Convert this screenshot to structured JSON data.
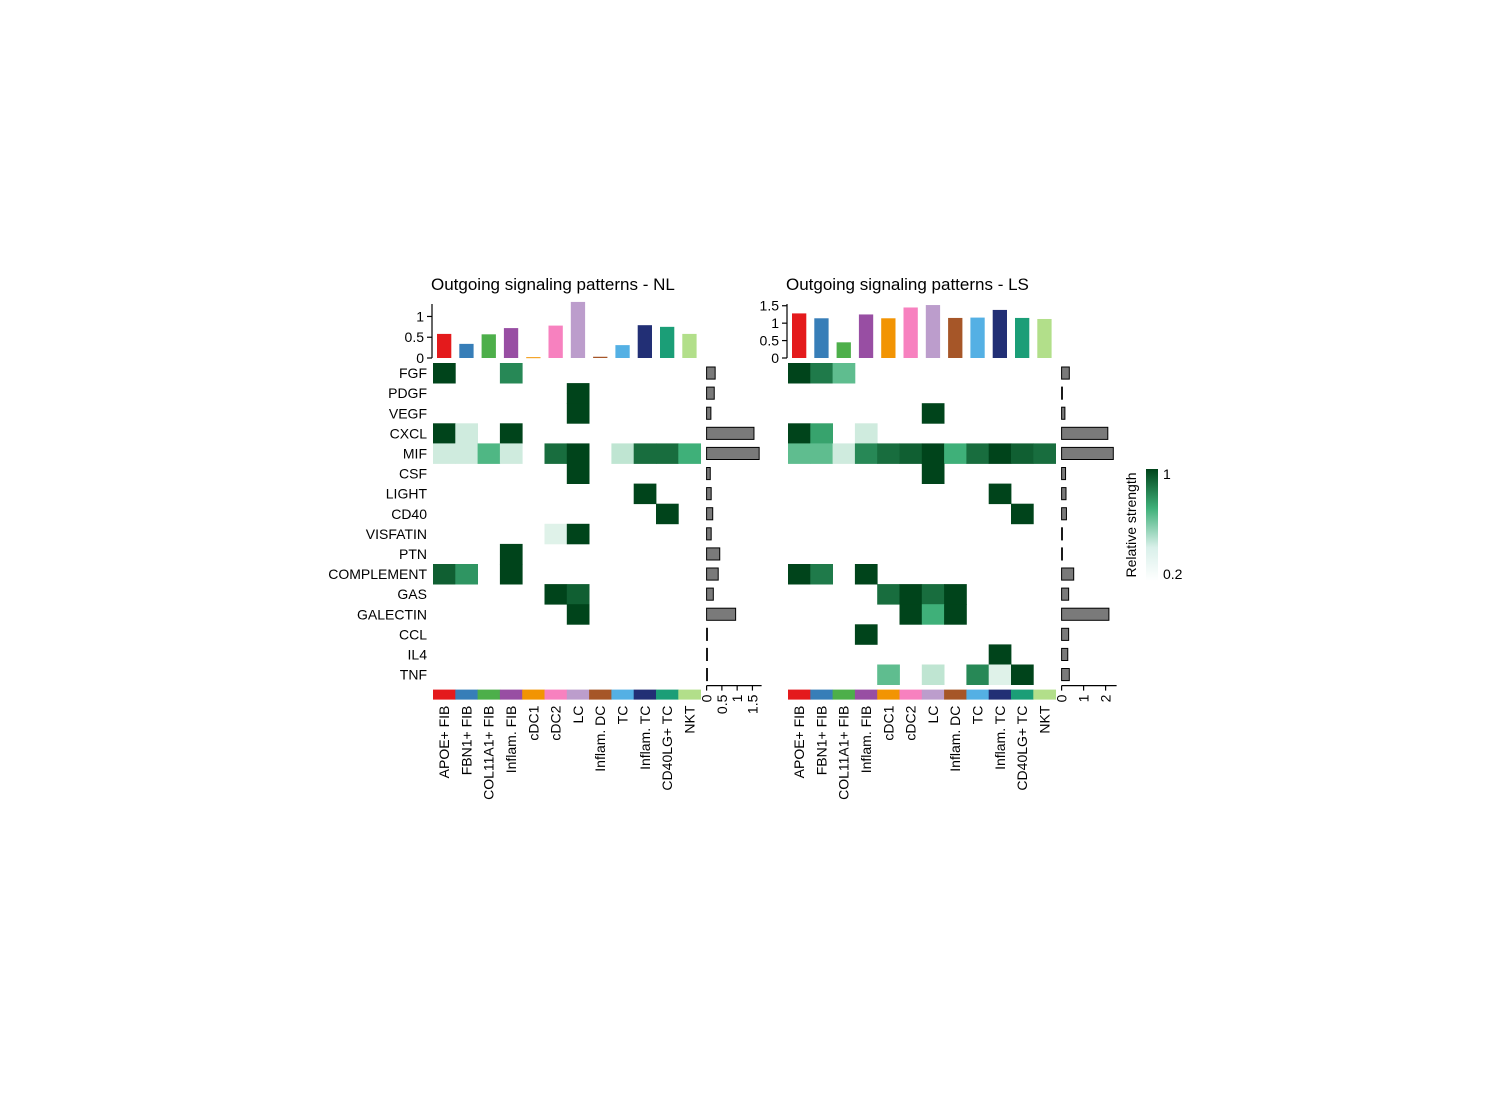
{
  "chart_data": {
    "type": "heatmap",
    "signaling_pathways": [
      "FGF",
      "PDGF",
      "VEGF",
      "CXCL",
      "MIF",
      "CSF",
      "LIGHT",
      "CD40",
      "VISFATIN",
      "PTN",
      "COMPLEMENT",
      "GAS",
      "GALECTIN",
      "CCL",
      "IL4",
      "TNF"
    ],
    "cell_types": [
      "APOE+ FIB",
      "FBN1+ FIB",
      "COL11A1+ FIB",
      "Inflam. FIB",
      "cDC1",
      "cDC2",
      "LC",
      "Inflam. DC",
      "TC",
      "Inflam. TC",
      "CD40LG+ TC",
      "NKT"
    ],
    "cell_type_colors": [
      "#E41A1C",
      "#377EB8",
      "#4DAF4A",
      "#984EA3",
      "#F29403",
      "#F781BF",
      "#BC9DCC",
      "#A65628",
      "#54B0E4",
      "#222F75",
      "#1B9E77",
      "#B2DF8A"
    ],
    "colorscale": {
      "label": "Relative strength",
      "min_label": "0.2",
      "max_label": "1",
      "low_color": "#FFFFFF",
      "mid_color": "#3FB079",
      "high_color": "#00441B"
    },
    "panels": [
      {
        "title": "Outgoing signaling patterns - NL",
        "top_axis": {
          "ticks": [
            "0",
            "0.5",
            "1"
          ],
          "max": 1.3
        },
        "right_axis": {
          "ticks": [
            "0",
            "0.5",
            "1",
            "1.5"
          ],
          "max": 1.8
        },
        "column_totals": [
          0.58,
          0.34,
          0.57,
          0.72,
          0.02,
          0.78,
          1.35,
          0.03,
          0.31,
          0.79,
          0.75,
          0.58
        ],
        "row_totals": [
          0.28,
          0.25,
          0.14,
          1.55,
          1.72,
          0.12,
          0.15,
          0.2,
          0.15,
          0.43,
          0.38,
          0.22,
          0.95,
          0.01,
          0.01,
          0.01
        ],
        "matrix": [
          [
            1,
            0,
            0,
            0.75,
            0,
            0,
            0,
            0,
            0,
            0,
            0,
            0
          ],
          [
            0,
            0,
            0,
            0,
            0,
            0,
            1,
            0,
            0,
            0,
            0,
            0
          ],
          [
            0,
            0,
            0,
            0,
            0,
            0,
            1,
            0,
            0,
            0,
            0,
            0
          ],
          [
            1,
            0.15,
            0,
            1,
            0,
            0,
            0,
            0,
            0,
            0,
            0,
            0
          ],
          [
            0.15,
            0.15,
            0.55,
            0.15,
            0,
            0.85,
            1,
            0,
            0.2,
            0.85,
            0.85,
            0.6
          ],
          [
            0,
            0,
            0,
            0,
            0,
            0,
            1,
            0,
            0,
            0,
            0,
            0
          ],
          [
            0,
            0,
            0,
            0,
            0,
            0,
            0,
            0,
            0,
            1,
            0,
            0
          ],
          [
            0,
            0,
            0,
            0,
            0,
            0,
            0,
            0,
            0,
            0,
            1,
            0
          ],
          [
            0,
            0,
            0,
            0,
            0,
            0.1,
            1,
            0,
            0,
            0,
            0,
            0
          ],
          [
            0,
            0,
            0,
            1,
            0,
            0,
            0,
            0,
            0,
            0,
            0,
            0
          ],
          [
            0.9,
            0.7,
            0,
            1,
            0,
            0,
            0,
            0,
            0,
            0,
            0,
            0
          ],
          [
            0,
            0,
            0,
            0,
            0,
            1,
            0.9,
            0,
            0,
            0,
            0,
            0
          ],
          [
            0,
            0,
            0,
            0,
            0,
            0,
            1,
            0,
            0,
            0,
            0,
            0
          ],
          [
            0,
            0,
            0,
            0,
            0,
            0,
            0,
            0,
            0,
            0,
            0,
            0
          ],
          [
            0,
            0,
            0,
            0,
            0,
            0,
            0,
            0,
            0,
            0,
            0,
            0
          ],
          [
            0,
            0,
            0,
            0,
            0,
            0,
            0,
            0,
            0,
            0,
            0,
            0
          ]
        ]
      },
      {
        "title": "Outgoing signaling patterns - LS",
        "top_axis": {
          "ticks": [
            "0",
            "0.5",
            "1",
            "1.5"
          ],
          "max": 1.55
        },
        "right_axis": {
          "ticks": [
            "0",
            "1",
            "2"
          ],
          "max": 2.5
        },
        "column_totals": [
          1.28,
          1.14,
          0.45,
          1.25,
          1.14,
          1.45,
          1.52,
          1.15,
          1.16,
          1.38,
          1.15,
          1.12
        ],
        "row_totals": [
          0.35,
          0.02,
          0.15,
          2.1,
          2.35,
          0.18,
          0.2,
          0.22,
          0.02,
          0.02,
          0.55,
          0.32,
          2.15,
          0.32,
          0.28,
          0.35
        ],
        "matrix": [
          [
            1,
            0.8,
            0.5,
            0,
            0,
            0,
            0,
            0,
            0,
            0,
            0,
            0
          ],
          [
            0,
            0,
            0,
            0,
            0,
            0,
            0,
            0,
            0,
            0,
            0,
            0
          ],
          [
            0,
            0,
            0,
            0,
            0,
            0,
            1,
            0,
            0,
            0,
            0,
            0
          ],
          [
            1,
            0.65,
            0,
            0.15,
            0,
            0,
            0,
            0,
            0,
            0,
            0,
            0
          ],
          [
            0.5,
            0.5,
            0.15,
            0.75,
            0.85,
            0.9,
            1,
            0.6,
            0.85,
            1,
            0.9,
            0.85
          ],
          [
            0,
            0,
            0,
            0,
            0,
            0,
            1,
            0,
            0,
            0,
            0,
            0
          ],
          [
            0,
            0,
            0,
            0,
            0,
            0,
            0,
            0,
            0,
            1,
            0,
            0
          ],
          [
            0,
            0,
            0,
            0,
            0,
            0,
            0,
            0,
            0,
            0,
            1,
            0
          ],
          [
            0,
            0,
            0,
            0,
            0,
            0,
            0,
            0,
            0,
            0,
            0,
            0
          ],
          [
            0,
            0,
            0,
            0,
            0,
            0,
            0,
            0,
            0,
            0,
            0,
            0
          ],
          [
            1,
            0.8,
            0,
            1,
            0,
            0,
            0,
            0,
            0,
            0,
            0,
            0
          ],
          [
            0,
            0,
            0,
            0,
            0.85,
            1,
            0.85,
            1,
            0,
            0,
            0,
            0
          ],
          [
            0,
            0,
            0,
            0,
            0,
            1,
            0.6,
            1,
            0,
            0,
            0,
            0
          ],
          [
            0,
            0,
            0,
            1,
            0,
            0,
            0,
            0,
            0,
            0,
            0,
            0
          ],
          [
            0,
            0,
            0,
            0,
            0,
            0,
            0,
            0,
            0,
            1,
            0,
            0
          ],
          [
            0,
            0,
            0,
            0,
            0.5,
            0,
            0.2,
            0,
            0.75,
            0.1,
            1,
            0
          ]
        ]
      }
    ]
  }
}
